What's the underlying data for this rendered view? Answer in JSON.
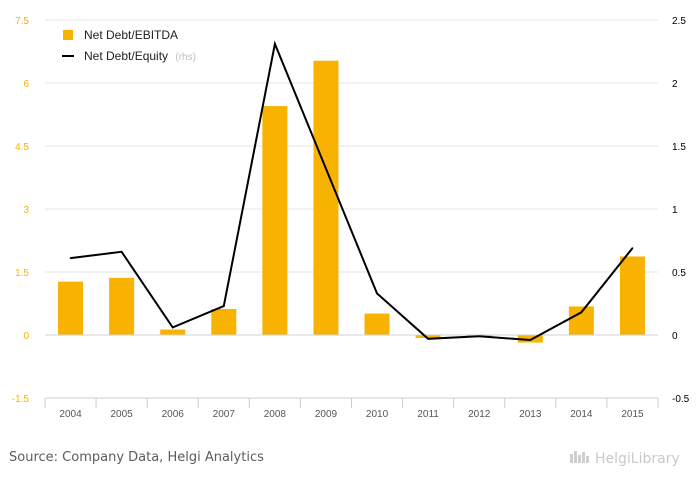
{
  "chart_data": {
    "type": "bar",
    "categories": [
      "2004",
      "2005",
      "2006",
      "2007",
      "2008",
      "2009",
      "2010",
      "2011",
      "2012",
      "2013",
      "2014",
      "2015"
    ],
    "series": [
      {
        "name": "Net Debt/EBITDA",
        "kind": "bar",
        "axis": "left",
        "color": "#f8b200",
        "values": [
          1.27,
          1.36,
          0.13,
          0.62,
          5.45,
          6.53,
          0.51,
          -0.07,
          -0.04,
          -0.18,
          0.68,
          1.87
        ]
      },
      {
        "name": "Net Debt/Equity",
        "kind": "line",
        "axis": "right",
        "color": "#000000",
        "values": [
          0.61,
          0.66,
          0.06,
          0.23,
          2.31,
          1.32,
          0.33,
          -0.03,
          -0.01,
          -0.04,
          0.18,
          0.69
        ]
      }
    ],
    "legend": {
      "entries": [
        "Net Debt/EBITDA",
        "Net Debt/Equity"
      ],
      "rhs_suffix": "(rhs)",
      "position": "top-left"
    },
    "left_axis": {
      "ylim": [
        -1.5,
        7.5
      ],
      "ticks": [
        "7.5",
        "6",
        "4.5",
        "3",
        "1.5",
        "0",
        "-1.5"
      ],
      "tick_values": [
        7.5,
        6,
        4.5,
        3,
        1.5,
        0,
        -1.5
      ],
      "color": "#f8b200"
    },
    "right_axis": {
      "ylim": [
        -0.5,
        2.5
      ],
      "ticks": [
        "2.5",
        "2",
        "1.5",
        "1",
        "0.5",
        "0",
        "-0.5"
      ],
      "tick_values": [
        2.5,
        2,
        1.5,
        1,
        0.5,
        0,
        -0.5
      ],
      "color": "#000000"
    },
    "grid": true
  },
  "footer": {
    "source": "Source: Company Data, Helgi Analytics",
    "brand": "HelgiLibrary"
  },
  "brand_icon": "city-skyline-icon"
}
